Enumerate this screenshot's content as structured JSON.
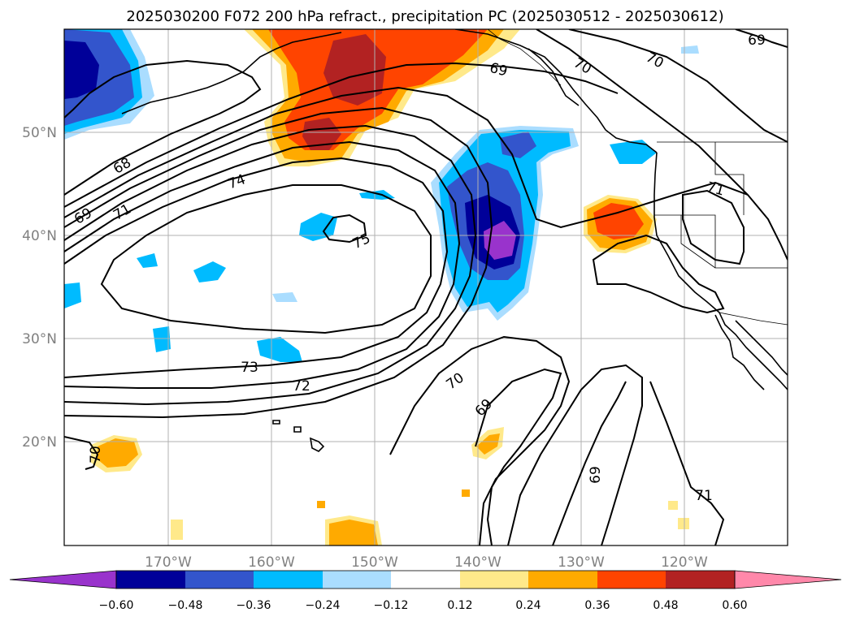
{
  "title": "2025030200 F072 200 hPa refract., precipitation PC (2025030512 - 2025030612)",
  "colors": {
    "neg_060": "#9933cc",
    "neg_048": "#000099",
    "neg_036": "#3355cc",
    "neg_024": "#00bbff",
    "neg_012": "#aaddff",
    "pos_012": "#ffe98a",
    "pos_024": "#ffaa00",
    "pos_036": "#ff4400",
    "pos_048": "#b22222",
    "pos_060": "#ff88aa",
    "grid": "#b0b0b0",
    "tick_label": "#808080"
  },
  "map": {
    "lon_labels": [
      "170°W",
      "160°W",
      "150°W",
      "140°W",
      "130°W",
      "120°W"
    ],
    "lat_labels": [
      "50°N",
      "40°N",
      "30°N",
      "20°N"
    ],
    "contour_labels": [
      "69",
      "70",
      "70",
      "68",
      "74",
      "69",
      "71",
      "75",
      "71",
      "73",
      "72",
      "70",
      "69",
      "70",
      "69",
      "71",
      "69"
    ]
  },
  "colorbar": {
    "ticks": [
      "−0.60",
      "−0.48",
      "−0.36",
      "−0.24",
      "−0.12",
      "0.12",
      "0.24",
      "0.36",
      "0.48",
      "0.60"
    ],
    "bins": [
      "#9933cc",
      "#000099",
      "#3355cc",
      "#00bbff",
      "#aaddff",
      "#ffffff",
      "#ffe98a",
      "#ffaa00",
      "#ff4400",
      "#b22222",
      "#ff88aa"
    ]
  }
}
